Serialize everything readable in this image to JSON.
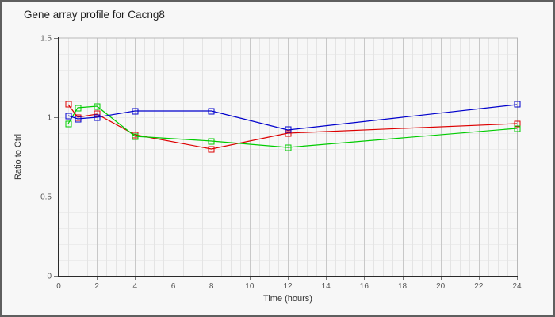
{
  "header": {
    "title": "Gene array profile for Cacng8"
  },
  "colors": {
    "series_red": "#dd0000",
    "series_green": "#00cc00",
    "series_blue": "#0000cc",
    "grid_minor_v": "#e4e4e4",
    "grid_minor_h": "#ececec",
    "grid_major_v": "#c8c8c8",
    "frame": "#b8b8b8",
    "axis": "#2a2a2a",
    "tick": "#777777",
    "background": "#f7f7f7",
    "outer_border": "#5f5f5f"
  },
  "chart_data": {
    "type": "line",
    "title": "Gene array profile for Cacng8",
    "xlabel": "Time (hours)",
    "ylabel": "Ratio to Ctrl",
    "x": [
      0.5,
      1,
      2,
      4,
      8,
      12,
      24
    ],
    "series": [
      {
        "name": "red",
        "color": "#dd0000",
        "values": [
          1.08,
          1.0,
          1.02,
          0.89,
          0.8,
          0.9,
          0.96
        ]
      },
      {
        "name": "green",
        "color": "#00cc00",
        "values": [
          0.96,
          1.06,
          1.07,
          0.88,
          0.85,
          0.81,
          0.93
        ]
      },
      {
        "name": "blue",
        "color": "#0000cc",
        "values": [
          1.01,
          0.99,
          1.0,
          1.04,
          1.04,
          0.92,
          1.08
        ]
      }
    ],
    "xlim": [
      0,
      24
    ],
    "ylim": [
      0,
      1.5
    ],
    "x_tick_values": [
      0,
      2,
      4,
      6,
      8,
      10,
      12,
      14,
      16,
      18,
      20,
      22,
      24
    ],
    "x_tick_labels": [
      "0",
      "2",
      "4",
      "6",
      "8",
      "10",
      "12",
      "14",
      "16",
      "18",
      "20",
      "22",
      "24"
    ],
    "y_tick_values": [
      0,
      0.5,
      1,
      1.5
    ],
    "y_tick_labels": [
      "0",
      "0.5",
      "1",
      "1.5"
    ],
    "x_minor_step": 0.5,
    "y_minor_step": 0.1,
    "grid": true,
    "legend_position": "none",
    "marker": "open-square"
  }
}
